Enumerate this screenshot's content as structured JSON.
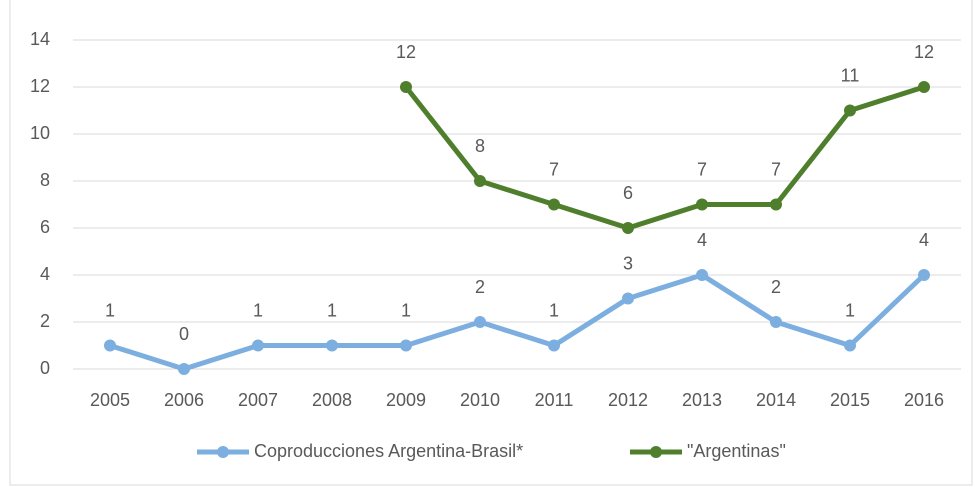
{
  "chart_data": {
    "type": "line",
    "categories": [
      "2005",
      "2006",
      "2007",
      "2008",
      "2009",
      "2010",
      "2011",
      "2012",
      "2013",
      "2014",
      "2015",
      "2016"
    ],
    "series": [
      {
        "name": "Coproducciones Argentina-Brasil*",
        "color": "#7cafe0",
        "values": [
          1,
          0,
          1,
          1,
          1,
          2,
          1,
          3,
          4,
          2,
          1,
          4
        ]
      },
      {
        "name": "\"Argentinas\"",
        "color": "#4f7f2c",
        "values": [
          null,
          null,
          null,
          null,
          12,
          8,
          7,
          6,
          7,
          7,
          11,
          12
        ]
      }
    ],
    "ylim": [
      0,
      14
    ],
    "yticks": [
      0,
      2,
      4,
      6,
      8,
      10,
      12,
      14
    ],
    "grid": true,
    "legend": "bottom"
  }
}
